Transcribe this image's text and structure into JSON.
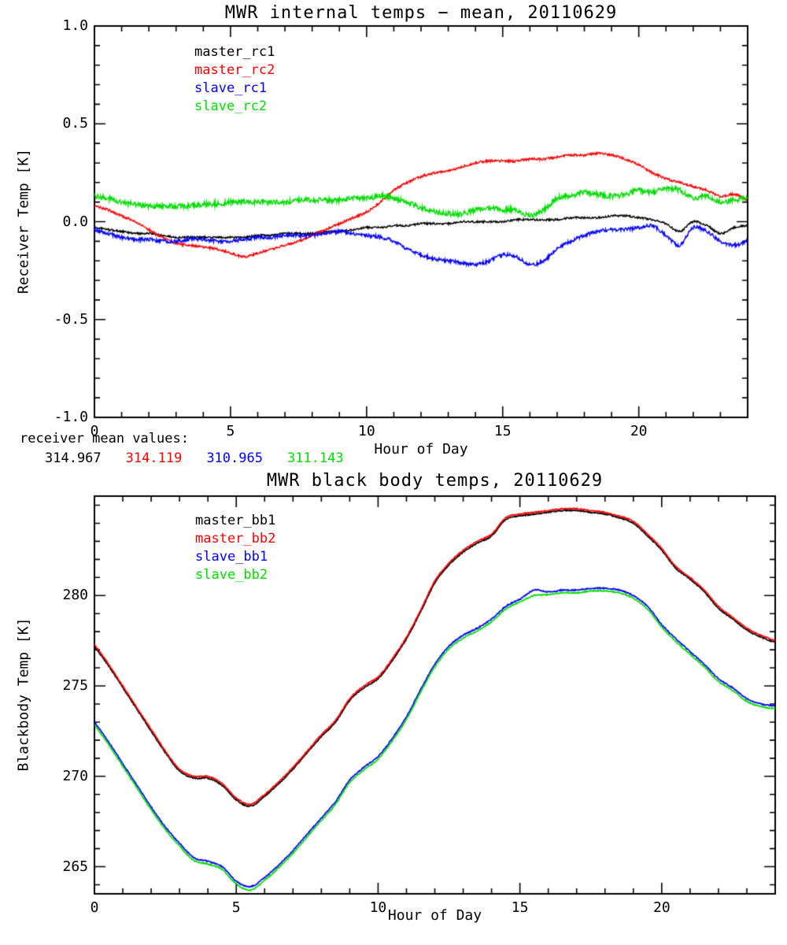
{
  "chart_data": [
    {
      "type": "line",
      "title": "MWR internal temps − mean, 20110629",
      "xlabel": "Hour of Day",
      "ylabel": "Receiver Temp [K]",
      "xlim": [
        0,
        24
      ],
      "ylim": [
        -1.0,
        1.0
      ],
      "xticks": [
        0,
        5,
        10,
        15,
        20
      ],
      "xtick_labels": [
        "0",
        "5",
        "10",
        "15",
        "20"
      ],
      "x_minor_step": 1,
      "yticks": [
        -1.0,
        -0.5,
        0.0,
        0.5,
        1.0
      ],
      "ytick_labels": [
        "-1.0",
        "-0.5",
        "0.0",
        "0.5",
        "1.0"
      ],
      "y_minor_step": 0.1,
      "grid": false,
      "legend_position": "top-left-inside",
      "x": [
        0,
        0.5,
        1,
        1.5,
        2,
        2.5,
        3,
        3.5,
        4,
        4.5,
        5,
        5.5,
        6,
        6.5,
        7,
        7.5,
        8,
        8.5,
        9,
        9.5,
        10,
        10.5,
        11,
        11.5,
        12,
        12.5,
        13,
        13.5,
        14,
        14.5,
        15,
        15.5,
        16,
        16.5,
        17,
        17.5,
        18,
        18.5,
        19,
        19.5,
        20,
        20.5,
        21,
        21.5,
        22,
        22.5,
        23,
        23.5,
        24
      ],
      "series": [
        {
          "name": "master_rc1",
          "color": "#000000",
          "noise": 0.005,
          "values": [
            -0.03,
            -0.04,
            -0.05,
            -0.06,
            -0.06,
            -0.07,
            -0.08,
            -0.08,
            -0.08,
            -0.08,
            -0.08,
            -0.08,
            -0.07,
            -0.07,
            -0.06,
            -0.06,
            -0.06,
            -0.05,
            -0.05,
            -0.04,
            -0.03,
            -0.03,
            -0.02,
            -0.02,
            -0.01,
            -0.01,
            -0.01,
            0,
            0,
            0,
            0,
            0.01,
            0.01,
            0.01,
            0.01,
            0.02,
            0.02,
            0.02,
            0.03,
            0.03,
            0.02,
            0.01,
            -0.01,
            -0.05,
            0,
            -0.02,
            -0.06,
            -0.03,
            -0.02
          ]
        },
        {
          "name": "master_rc2",
          "color": "#ff0000",
          "noise": 0.006,
          "values": [
            0.08,
            0.06,
            0.03,
            0,
            -0.04,
            -0.08,
            -0.11,
            -0.12,
            -0.13,
            -0.14,
            -0.16,
            -0.18,
            -0.16,
            -0.14,
            -0.12,
            -0.1,
            -0.07,
            -0.04,
            -0.01,
            0.02,
            0.05,
            0.1,
            0.16,
            0.2,
            0.23,
            0.25,
            0.26,
            0.28,
            0.3,
            0.31,
            0.31,
            0.31,
            0.32,
            0.32,
            0.33,
            0.34,
            0.34,
            0.35,
            0.34,
            0.32,
            0.29,
            0.25,
            0.22,
            0.2,
            0.18,
            0.16,
            0.13,
            0.14,
            0.11
          ]
        },
        {
          "name": "slave_rc1",
          "color": "#0000ff",
          "noise": 0.009,
          "values": [
            -0.04,
            -0.06,
            -0.08,
            -0.09,
            -0.09,
            -0.1,
            -0.1,
            -0.09,
            -0.09,
            -0.1,
            -0.1,
            -0.09,
            -0.08,
            -0.08,
            -0.07,
            -0.07,
            -0.07,
            -0.06,
            -0.05,
            -0.06,
            -0.07,
            -0.08,
            -0.1,
            -0.14,
            -0.17,
            -0.19,
            -0.2,
            -0.21,
            -0.22,
            -0.2,
            -0.17,
            -0.18,
            -0.22,
            -0.2,
            -0.14,
            -0.1,
            -0.07,
            -0.05,
            -0.04,
            -0.04,
            -0.03,
            -0.02,
            -0.07,
            -0.12,
            -0.03,
            -0.05,
            -0.1,
            -0.12,
            -0.1
          ]
        },
        {
          "name": "slave_rc2",
          "color": "#00dd00",
          "noise": 0.013,
          "values": [
            0.13,
            0.12,
            0.1,
            0.09,
            0.08,
            0.08,
            0.08,
            0.08,
            0.09,
            0.09,
            0.1,
            0.1,
            0.1,
            0.1,
            0.1,
            0.11,
            0.11,
            0.11,
            0.11,
            0.12,
            0.12,
            0.13,
            0.12,
            0.1,
            0.07,
            0.05,
            0.04,
            0.04,
            0.06,
            0.07,
            0.06,
            0.06,
            0.03,
            0.06,
            0.12,
            0.13,
            0.15,
            0.14,
            0.13,
            0.14,
            0.16,
            0.15,
            0.17,
            0.16,
            0.12,
            0.13,
            0.1,
            0.11,
            0.12
          ]
        }
      ],
      "mean_values": {
        "label": "receiver mean values:",
        "values": [
          {
            "text": "314.967",
            "color": "#000000"
          },
          {
            "text": "314.119",
            "color": "#ff0000"
          },
          {
            "text": "310.965",
            "color": "#0000ff"
          },
          {
            "text": "311.143",
            "color": "#00dd00"
          }
        ]
      }
    },
    {
      "type": "line",
      "title": "MWR black body temps, 20110629",
      "xlabel": "Hour of Day",
      "ylabel": "Blackbody Temp [K]",
      "xlim": [
        0,
        24
      ],
      "ylim": [
        263.5,
        285.5
      ],
      "xticks": [
        0,
        5,
        10,
        15,
        20
      ],
      "xtick_labels": [
        "0",
        "5",
        "10",
        "15",
        "20"
      ],
      "x_minor_step": 1,
      "yticks": [
        265,
        270,
        275,
        280
      ],
      "ytick_labels": [
        "265",
        "270",
        "275",
        "280"
      ],
      "y_minor_step": 1,
      "grid": false,
      "legend_position": "top-left-inside",
      "x": [
        0,
        0.5,
        1,
        1.5,
        2,
        2.5,
        3,
        3.5,
        4,
        4.5,
        5,
        5.5,
        6,
        6.5,
        7,
        7.5,
        8,
        8.5,
        9,
        9.5,
        10,
        10.5,
        11,
        11.5,
        12,
        12.5,
        13,
        13.5,
        14,
        14.5,
        15,
        15.5,
        16,
        16.5,
        17,
        17.5,
        18,
        18.5,
        19,
        19.5,
        20,
        20.5,
        21,
        21.5,
        22,
        22.5,
        23,
        23.5,
        24
      ],
      "series": [
        {
          "name": "master_bb1",
          "color": "#000000",
          "noise": 0.03,
          "values": [
            277.2,
            276.1,
            274.9,
            273.7,
            272.5,
            271.3,
            270.3,
            269.9,
            269.9,
            269.5,
            268.7,
            268.35,
            268.9,
            269.6,
            270.4,
            271.3,
            272.2,
            273,
            274.2,
            274.9,
            275.4,
            276.4,
            277.6,
            279.1,
            280.7,
            281.7,
            282.4,
            282.9,
            283.3,
            284.2,
            284.4,
            284.5,
            284.6,
            284.7,
            284.7,
            284.6,
            284.5,
            284.3,
            284,
            283.3,
            282.5,
            281.5,
            280.9,
            280.2,
            279.3,
            278.7,
            278.1,
            277.7,
            277.4
          ]
        },
        {
          "name": "master_bb2",
          "color": "#ff0000",
          "noise": 0.03,
          "values": [
            277.3,
            276.2,
            275,
            273.8,
            272.6,
            271.4,
            270.4,
            270,
            270,
            269.6,
            268.8,
            268.45,
            269,
            269.7,
            270.5,
            271.4,
            272.3,
            273.1,
            274.3,
            275,
            275.5,
            276.5,
            277.7,
            279.2,
            280.8,
            281.8,
            282.5,
            283,
            283.4,
            284.3,
            284.5,
            284.6,
            284.7,
            284.8,
            284.8,
            284.7,
            284.6,
            284.4,
            284.1,
            283.4,
            282.6,
            281.6,
            281,
            280.3,
            279.4,
            278.8,
            278.2,
            277.8,
            277.5
          ]
        },
        {
          "name": "slave_bb1",
          "color": "#0000ff",
          "noise": 0.03,
          "values": [
            273,
            271.9,
            270.7,
            269.5,
            268.3,
            267.2,
            266.3,
            265.5,
            265.3,
            265,
            264.2,
            263.9,
            264.4,
            265.1,
            265.9,
            266.8,
            267.7,
            268.6,
            269.8,
            270.5,
            271.1,
            272.1,
            273.3,
            274.8,
            276.2,
            277.2,
            277.8,
            278.2,
            278.7,
            279.4,
            279.8,
            280.3,
            280.2,
            280.3,
            280.3,
            280.4,
            280.4,
            280.3,
            280,
            279.4,
            278.4,
            277.6,
            276.9,
            276.2,
            275.4,
            274.9,
            274.3,
            274,
            273.9
          ]
        },
        {
          "name": "slave_bb2",
          "color": "#00dd00",
          "noise": 0.03,
          "values": [
            272.85,
            271.75,
            270.55,
            269.35,
            268.15,
            267.05,
            266.15,
            265.35,
            265.15,
            264.85,
            264.05,
            263.7,
            264.25,
            264.95,
            265.75,
            266.65,
            267.55,
            268.45,
            269.65,
            270.35,
            270.95,
            271.95,
            273.15,
            274.65,
            276.05,
            277.05,
            277.65,
            278.05,
            278.55,
            279.25,
            279.65,
            280,
            280.05,
            280.15,
            280.15,
            280.25,
            280.25,
            280.15,
            279.85,
            279.25,
            278.25,
            277.45,
            276.75,
            276.05,
            275.25,
            274.75,
            274.15,
            273.85,
            273.75
          ]
        }
      ]
    }
  ]
}
